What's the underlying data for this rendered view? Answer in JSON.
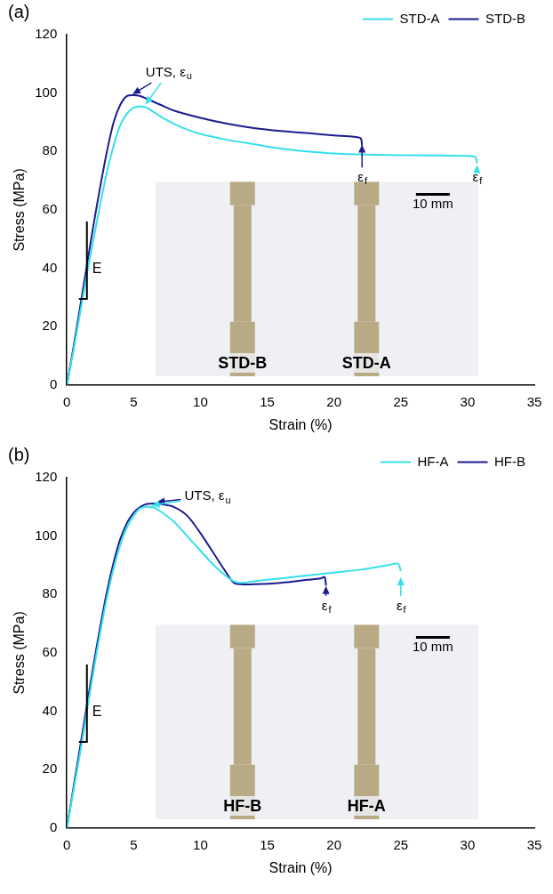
{
  "chart_data": [
    {
      "type": "line",
      "title": "(a)",
      "x_label": "Strain (%)",
      "y_label": "Stress (MPa)",
      "xlim": [
        0,
        35
      ],
      "xticks": [
        0,
        5,
        10,
        15,
        20,
        25,
        30,
        35
      ],
      "ylim": [
        0,
        120
      ],
      "yticks": [
        0,
        20,
        40,
        60,
        80,
        100,
        120
      ],
      "grid": false,
      "legend": "top-right",
      "series": [
        {
          "name": "STD-A",
          "color": "#33e0ea",
          "x": [
            0,
            0.5,
            1,
            1.5,
            2,
            2.5,
            3,
            3.5,
            4,
            4.5,
            5,
            5.5,
            6,
            6.5,
            7,
            8,
            9,
            10,
            12,
            14,
            16,
            18,
            20,
            22,
            24,
            26,
            28,
            30,
            30.6,
            30.7
          ],
          "values": [
            0,
            12,
            25,
            38,
            50,
            62,
            73,
            82,
            89,
            93,
            95,
            95.5,
            95,
            93.5,
            92,
            89.5,
            87.5,
            86,
            84,
            82.5,
            81,
            80,
            79.3,
            79,
            78.8,
            78.7,
            78.6,
            78.5,
            78,
            76
          ]
        },
        {
          "name": "STD-B",
          "color": "#1c1c8e",
          "x": [
            0,
            0.5,
            1,
            1.5,
            2,
            2.5,
            3,
            3.5,
            4,
            4.5,
            5,
            5.5,
            6,
            7,
            8,
            10,
            12,
            14,
            16,
            18,
            20,
            21.5,
            22,
            22.1
          ],
          "values": [
            0,
            13,
            27,
            41,
            55,
            68,
            80,
            90,
            96,
            99,
            99.3,
            99,
            98,
            96,
            94,
            91.5,
            89.5,
            88,
            87,
            86.3,
            85.5,
            85,
            84.5,
            82
          ]
        }
      ],
      "slope_marker": {
        "label": "E",
        "x": [
          0.9,
          1.5
        ],
        "y": [
          29.5,
          56
        ]
      },
      "annotations": [
        {
          "text": "UTS, ε",
          "subscript": "u",
          "x": 7.6,
          "y": 107,
          "arrows": [
            {
              "series": "STD-B",
              "x": 4.8,
              "y": 99.3
            },
            {
              "series": "STD-A",
              "x": 5.8,
              "y": 95.6
            }
          ]
        },
        {
          "text": "ε",
          "subscript": "f",
          "x": 22.1,
          "y": 71,
          "arrows": [
            {
              "series": "STD-B",
              "x": 22.1,
              "y": 83
            }
          ]
        },
        {
          "text": "ε",
          "subscript": "f",
          "x": 30.7,
          "y": 71,
          "arrows": [
            {
              "series": "STD-A",
              "x": 30.7,
              "y": 76
            }
          ]
        }
      ],
      "inset": {
        "labels": [
          "STD-B",
          "STD-A"
        ],
        "scale_bar": "10 mm"
      }
    },
    {
      "type": "line",
      "title": "(b)",
      "x_label": "Strain (%)",
      "y_label": "Stress (MPa)",
      "xlim": [
        0,
        35
      ],
      "xticks": [
        0,
        5,
        10,
        15,
        20,
        25,
        30,
        35
      ],
      "ylim": [
        0,
        120
      ],
      "yticks": [
        0,
        20,
        40,
        60,
        80,
        100,
        120
      ],
      "grid": false,
      "legend": "top-right",
      "series": [
        {
          "name": "HF-A",
          "color": "#33e0ea",
          "x": [
            0,
            0.5,
            1,
            1.5,
            2,
            2.5,
            3,
            3.5,
            4,
            4.5,
            5,
            5.5,
            6,
            6.5,
            7,
            8,
            9,
            10,
            11,
            12,
            12.5,
            13,
            14,
            16,
            18,
            20,
            22,
            24,
            24.8,
            25
          ],
          "values": [
            0,
            13,
            26,
            40,
            54,
            67,
            79,
            89,
            97,
            103,
            107,
            109.5,
            110,
            109.8,
            108.5,
            105,
            100,
            95,
            90,
            86,
            84.5,
            84,
            84.5,
            85.5,
            86.5,
            87.5,
            88.5,
            90,
            90.5,
            88
          ]
        },
        {
          "name": "HF-B",
          "color": "#1c1c8e",
          "x": [
            0,
            0.5,
            1,
            1.5,
            2,
            2.5,
            3,
            3.5,
            4,
            4.5,
            5,
            5.5,
            6,
            6.5,
            7,
            8,
            9,
            10,
            11,
            12,
            12.5,
            13,
            14,
            16,
            18,
            19,
            19.3,
            19.4
          ],
          "values": [
            0,
            14,
            28,
            42,
            56,
            69,
            81,
            91,
            99,
            104.5,
            108,
            110,
            111,
            111.2,
            111,
            110,
            107,
            101,
            94,
            87,
            84,
            83.5,
            83.5,
            84,
            85,
            85.5,
            86,
            83
          ]
        }
      ],
      "slope_marker": {
        "label": "E",
        "x": [
          0.9,
          1.5
        ],
        "y": [
          29.5,
          56
        ]
      },
      "annotations": [
        {
          "text": "UTS, ε",
          "subscript": "u",
          "x": 10.5,
          "y": 113.5,
          "arrows": [
            {
              "series": "HF-B",
              "x": 6.6,
              "y": 111.6
            },
            {
              "series": "HF-A",
              "x": 6.2,
              "y": 110.4
            }
          ]
        },
        {
          "text": "ε",
          "subscript": "f",
          "x": 19.4,
          "y": 76,
          "arrows": [
            {
              "series": "HF-B",
              "x": 19.4,
              "y": 83.5
            }
          ]
        },
        {
          "text": "ε",
          "subscript": "f",
          "x": 25,
          "y": 76,
          "arrows": [
            {
              "series": "HF-A",
              "x": 25,
              "y": 86.5
            }
          ]
        }
      ],
      "inset": {
        "labels": [
          "HF-B",
          "HF-A"
        ],
        "scale_bar": "10 mm"
      }
    }
  ]
}
